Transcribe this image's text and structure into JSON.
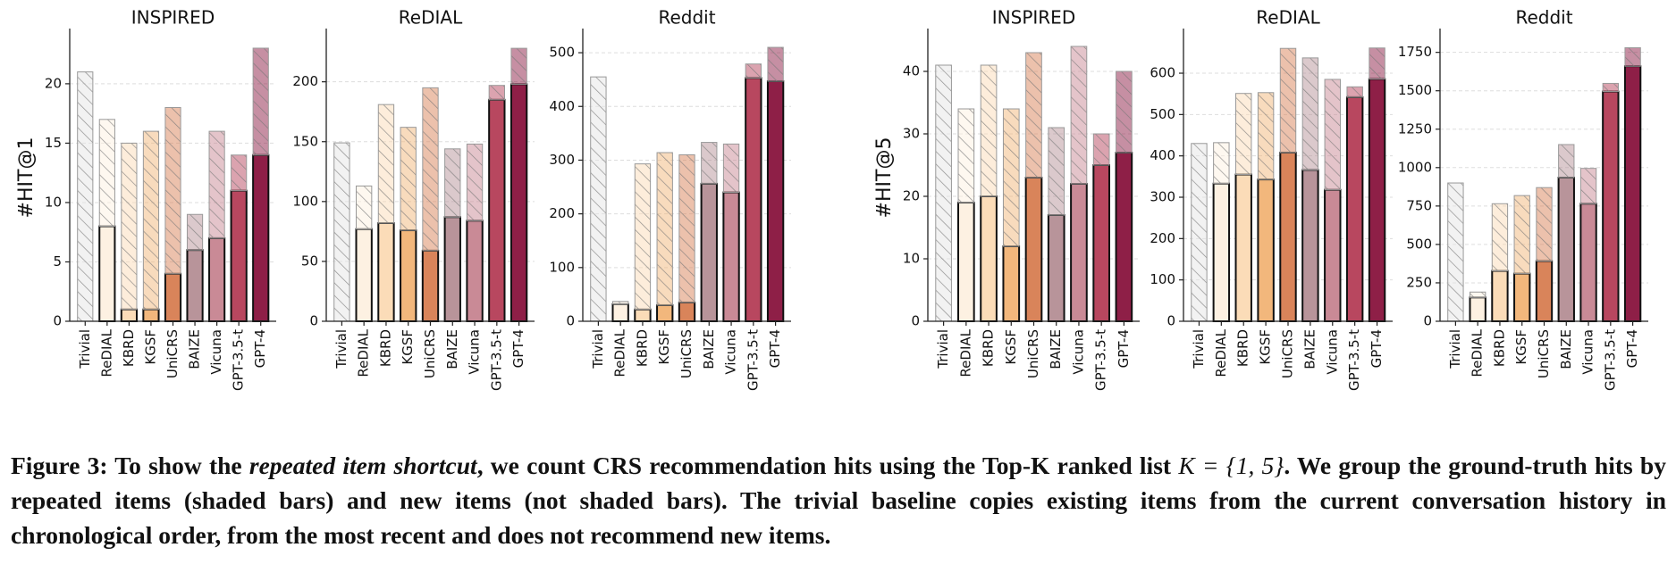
{
  "chart_data": [
    {
      "type": "bar",
      "title": "INSPIRED",
      "ylabel": "#HIT@1",
      "grid": true,
      "categories": [
        "Trivial",
        "ReDIAL",
        "KBRD",
        "KGSF",
        "UniCRS",
        "BAIZE",
        "Vicuna",
        "GPT-3.5-t",
        "GPT-4"
      ],
      "colors": [
        "#e6e6e6",
        "#fdf1e2",
        "#fbdcb8",
        "#f2b77c",
        "#d9845a",
        "#b8949a",
        "#c98a96",
        "#b8475f",
        "#8e1f47"
      ],
      "series": [
        {
          "values": [
            0,
            8,
            1,
            1,
            4,
            6,
            7,
            11,
            14
          ]
        },
        {
          "values": [
            21,
            9,
            14,
            15,
            14,
            3,
            9,
            3,
            9
          ],
          "hatch": true
        }
      ],
      "ylim": [
        0,
        24.2
      ],
      "yticks": [
        0,
        5,
        10,
        15,
        20
      ]
    },
    {
      "type": "bar",
      "title": "ReDIAL",
      "grid": true,
      "categories": [
        "Trivial",
        "ReDIAL",
        "KBRD",
        "KGSF",
        "UniCRS",
        "BAIZE",
        "Vicuna",
        "GPT-3.5-t",
        "GPT-4"
      ],
      "colors": [
        "#e6e6e6",
        "#fdf1e2",
        "#fbdcb8",
        "#f2b77c",
        "#d9845a",
        "#b8949a",
        "#c98a96",
        "#b8475f",
        "#8e1f47"
      ],
      "series": [
        {
          "values": [
            0,
            77,
            82,
            76,
            59,
            87,
            84,
            185,
            198
          ]
        },
        {
          "values": [
            149,
            36,
            99,
            86,
            136,
            57,
            64,
            12,
            30
          ],
          "hatch": true
        }
      ],
      "ylim": [
        0,
        240
      ],
      "yticks": [
        0,
        50,
        100,
        150,
        200
      ]
    },
    {
      "type": "bar",
      "title": "Reddit",
      "grid": true,
      "categories": [
        "Trivial",
        "ReDIAL",
        "KBRD",
        "KGSF",
        "UniCRS",
        "BAIZE",
        "Vicuna",
        "GPT-3.5-t",
        "GPT-4"
      ],
      "colors": [
        "#e6e6e6",
        "#fdf1e2",
        "#fbdcb8",
        "#f2b77c",
        "#d9845a",
        "#b8949a",
        "#c98a96",
        "#b8475f",
        "#8e1f47"
      ],
      "series": [
        {
          "values": [
            0,
            32,
            22,
            30,
            35,
            256,
            240,
            453,
            447
          ]
        },
        {
          "values": [
            455,
            5,
            271,
            284,
            275,
            77,
            90,
            26,
            63
          ],
          "hatch": true
        }
      ],
      "ylim": [
        0,
        535
      ],
      "yticks": [
        0,
        100,
        200,
        300,
        400,
        500
      ]
    },
    {
      "type": "bar",
      "title": "INSPIRED",
      "ylabel": "#HIT@5",
      "grid": true,
      "categories": [
        "Trivial",
        "ReDIAL",
        "KBRD",
        "KGSF",
        "UniCRS",
        "BAIZE",
        "Vicuna",
        "GPT-3.5-t",
        "GPT-4"
      ],
      "colors": [
        "#e6e6e6",
        "#fdf1e2",
        "#fbdcb8",
        "#f2b77c",
        "#d9845a",
        "#b8949a",
        "#c98a96",
        "#b8475f",
        "#8e1f47"
      ],
      "series": [
        {
          "values": [
            0,
            19,
            20,
            12,
            23,
            17,
            22,
            25,
            27
          ]
        },
        {
          "values": [
            41,
            15,
            21,
            22,
            20,
            14,
            22,
            5,
            13
          ],
          "hatch": true
        }
      ],
      "ylim": [
        0,
        46
      ],
      "yticks": [
        0,
        10,
        20,
        30,
        40
      ]
    },
    {
      "type": "bar",
      "title": "ReDIAL",
      "grid": true,
      "categories": [
        "Trivial",
        "ReDIAL",
        "KBRD",
        "KGSF",
        "UniCRS",
        "BAIZE",
        "Vicuna",
        "GPT-3.5-t",
        "GPT-4"
      ],
      "colors": [
        "#e6e6e6",
        "#fdf1e2",
        "#fbdcb8",
        "#f2b77c",
        "#d9845a",
        "#b8949a",
        "#c98a96",
        "#b8475f",
        "#8e1f47"
      ],
      "series": [
        {
          "values": [
            0,
            333,
            355,
            343,
            408,
            366,
            318,
            542,
            586
          ]
        },
        {
          "values": [
            430,
            99,
            196,
            210,
            252,
            271,
            267,
            25,
            75
          ],
          "hatch": true
        }
      ],
      "ylim": [
        0,
        695
      ],
      "yticks": [
        0,
        100,
        200,
        300,
        400,
        500,
        600
      ]
    },
    {
      "type": "bar",
      "title": "Reddit",
      "grid": true,
      "categories": [
        "Trivial",
        "ReDIAL",
        "KBRD",
        "KGSF",
        "UniCRS",
        "BAIZE",
        "Vicuna",
        "GPT-3.5-t",
        "GPT-4"
      ],
      "colors": [
        "#e6e6e6",
        "#fdf1e2",
        "#fbdcb8",
        "#f2b77c",
        "#d9845a",
        "#b8949a",
        "#c98a96",
        "#b8475f",
        "#8e1f47"
      ],
      "series": [
        {
          "values": [
            0,
            155,
            328,
            310,
            392,
            935,
            765,
            1495,
            1660
          ]
        },
        {
          "values": [
            900,
            35,
            437,
            508,
            478,
            215,
            230,
            53,
            120
          ],
          "hatch": true
        }
      ],
      "ylim": [
        0,
        1870
      ],
      "yticks": [
        0,
        250,
        500,
        750,
        1000,
        1250,
        1500,
        1750
      ]
    }
  ],
  "caption": {
    "label": "Figure 3:",
    "lead": "To show the",
    "emphasis": "repeated item shortcut",
    "middle": ", we count CRS recommendation hits using the Top-K ranked list",
    "math": "K = {1, 5}",
    "rest": ". We group the ground-truth hits by repeated items (shaded bars) and new items (not shaded bars). The trivial baseline copies existing items from the current conversation history in chronological order, from the most recent and does not recommend new items."
  }
}
